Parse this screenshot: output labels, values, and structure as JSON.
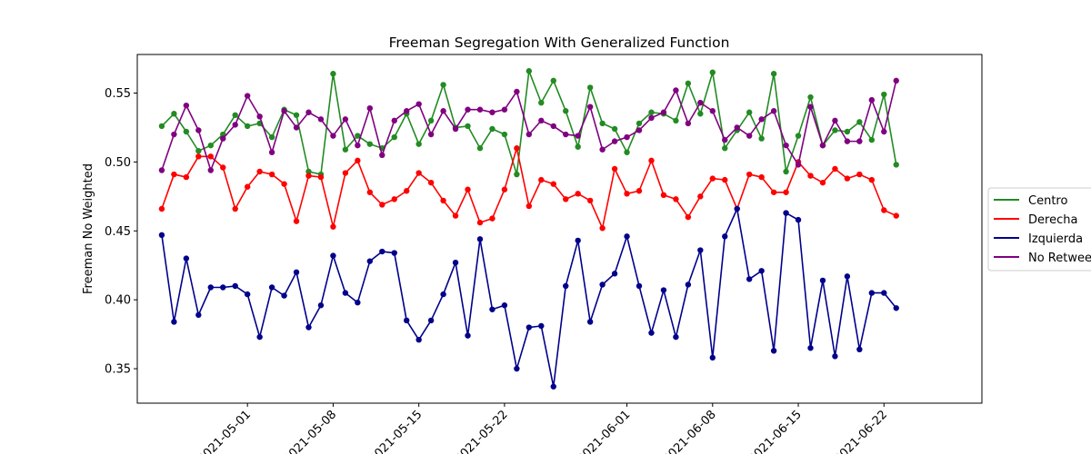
{
  "chart_data": {
    "type": "line",
    "title": "Freeman Segregation With Generalized Function",
    "xlabel": "",
    "ylabel": "Freeman No Weighted",
    "x_start": "2021-04-24",
    "x_end": "2021-06-28",
    "xlim": [
      "2021-04-22",
      "2021-06-30"
    ],
    "ylim": [
      0.325,
      0.578
    ],
    "yticks": [
      0.35,
      0.4,
      0.45,
      0.5,
      0.55
    ],
    "ytick_labels": [
      "0.35",
      "0.40",
      "0.45",
      "0.50",
      "0.55"
    ],
    "xticks": [
      "2021-05-01",
      "2021-05-08",
      "2021-05-15",
      "2021-05-22",
      "2021-06-01",
      "2021-06-08",
      "2021-06-15",
      "2021-06-22"
    ],
    "xtick_labels": [
      "2021-05-01",
      "2021-05-08",
      "2021-05-15",
      "2021-05-22",
      "2021-06-01",
      "2021-06-08",
      "2021-06-15",
      "2021-06-22"
    ],
    "legend_position": "right-outside",
    "grid": false,
    "series": [
      {
        "name": "Centro",
        "color": "#228b22",
        "values": [
          0.526,
          0.535,
          0.522,
          0.508,
          0.512,
          0.52,
          0.534,
          0.526,
          0.528,
          0.518,
          0.538,
          0.534,
          0.493,
          0.491,
          0.564,
          0.509,
          0.519,
          0.513,
          0.51,
          0.518,
          0.535,
          0.513,
          0.53,
          0.556,
          0.525,
          0.526,
          0.51,
          0.524,
          0.52,
          0.491,
          0.566,
          0.543,
          0.559,
          0.537,
          0.511,
          0.554,
          0.528,
          0.524,
          0.507,
          0.528,
          0.536,
          0.535,
          0.53,
          0.557,
          0.535,
          0.565,
          0.51,
          0.523,
          0.536,
          0.517,
          0.564,
          0.493,
          0.519,
          0.547,
          0.512,
          0.523,
          0.522,
          0.529,
          0.516,
          0.549,
          0.498
        ]
      },
      {
        "name": "Derecha",
        "color": "#ff0000",
        "values": [
          0.466,
          0.491,
          0.489,
          0.504,
          0.504,
          0.496,
          0.466,
          0.482,
          0.493,
          0.491,
          0.484,
          0.457,
          0.49,
          0.489,
          0.453,
          0.492,
          0.501,
          0.478,
          0.469,
          0.473,
          0.479,
          0.492,
          0.485,
          0.472,
          0.461,
          0.48,
          0.456,
          0.459,
          0.48,
          0.51,
          0.468,
          0.487,
          0.484,
          0.473,
          0.477,
          0.472,
          0.452,
          0.495,
          0.477,
          0.479,
          0.501,
          0.476,
          0.473,
          0.46,
          0.475,
          0.488,
          0.487,
          0.466,
          0.491,
          0.489,
          0.478,
          0.478,
          0.5,
          0.49,
          0.485,
          0.495,
          0.488,
          0.491,
          0.487,
          0.465,
          0.461
        ]
      },
      {
        "name": "Izquierda",
        "color": "#00008b",
        "values": [
          0.447,
          0.384,
          0.43,
          0.389,
          0.409,
          0.409,
          0.41,
          0.404,
          0.373,
          0.409,
          0.403,
          0.42,
          0.38,
          0.396,
          0.432,
          0.405,
          0.398,
          0.428,
          0.435,
          0.434,
          0.385,
          0.371,
          0.385,
          0.404,
          0.427,
          0.374,
          0.444,
          0.393,
          0.396,
          0.35,
          0.38,
          0.381,
          0.337,
          0.41,
          0.443,
          0.384,
          0.411,
          0.419,
          0.446,
          0.41,
          0.376,
          0.407,
          0.373,
          0.411,
          0.436,
          0.358,
          0.446,
          0.466,
          0.415,
          0.421,
          0.363,
          0.463,
          0.458,
          0.365,
          0.414,
          0.359,
          0.417,
          0.364,
          0.405,
          0.405,
          0.394
        ]
      },
      {
        "name": "No Retweet",
        "color": "#800080",
        "values": [
          0.494,
          0.52,
          0.541,
          0.523,
          0.494,
          0.517,
          0.527,
          0.548,
          0.533,
          0.507,
          0.537,
          0.525,
          0.536,
          0.531,
          0.519,
          0.531,
          0.512,
          0.539,
          0.505,
          0.53,
          0.537,
          0.542,
          0.52,
          0.537,
          0.524,
          0.538,
          0.538,
          0.536,
          0.538,
          0.551,
          0.52,
          0.53,
          0.526,
          0.52,
          0.519,
          0.54,
          0.509,
          0.515,
          0.518,
          0.523,
          0.532,
          0.536,
          0.552,
          0.528,
          0.543,
          0.537,
          0.516,
          0.525,
          0.519,
          0.531,
          0.537,
          0.512,
          0.498,
          0.54,
          0.512,
          0.53,
          0.515,
          0.515,
          0.545,
          0.522,
          0.559
        ]
      }
    ]
  }
}
